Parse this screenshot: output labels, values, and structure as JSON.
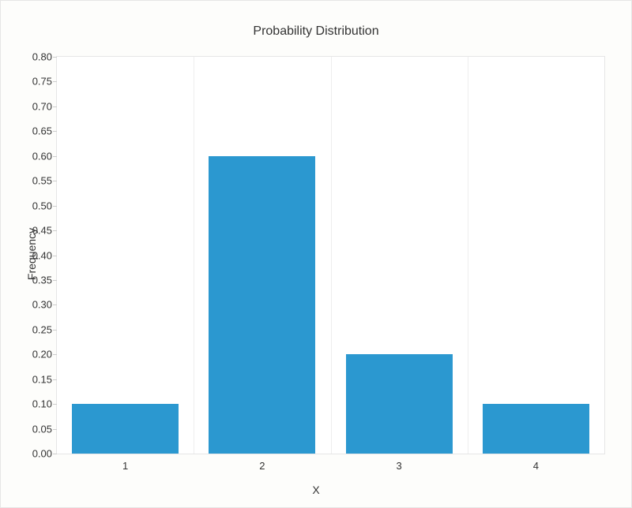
{
  "chart": {
    "type": "bar",
    "title": "Probability Distribution",
    "title_fontsize": 16,
    "xlabel": "X",
    "ylabel": "Frequency",
    "label_fontsize": 14,
    "tick_fontsize": 13,
    "background_color": "#fdfdfb",
    "plot_background_color": "#ffffff",
    "border_color": "#e6e6e6",
    "grid_color": "#eeeeee",
    "text_color": "#333333",
    "bar_color": "#2b98d0",
    "xlim": [
      0.5,
      4.5
    ],
    "ylim": [
      0.0,
      0.8
    ],
    "yticks": [
      0.0,
      0.05,
      0.1,
      0.15,
      0.2,
      0.25,
      0.3,
      0.35,
      0.4,
      0.45,
      0.5,
      0.55,
      0.6,
      0.65,
      0.7,
      0.75,
      0.8
    ],
    "ytick_labels": [
      "0.00",
      "0.05",
      "0.10",
      "0.15",
      "0.20",
      "0.25",
      "0.30",
      "0.35",
      "0.40",
      "0.45",
      "0.50",
      "0.55",
      "0.60",
      "0.65",
      "0.70",
      "0.75",
      "0.80"
    ],
    "xticks": [
      1,
      2,
      3,
      4
    ],
    "xtick_labels": [
      "1",
      "2",
      "3",
      "4"
    ],
    "x_gridlines": [
      1.5,
      2.5,
      3.5
    ],
    "bar_width": 0.78,
    "categories": [
      1,
      2,
      3,
      4
    ],
    "values": [
      0.1,
      0.6,
      0.2,
      0.1
    ]
  }
}
